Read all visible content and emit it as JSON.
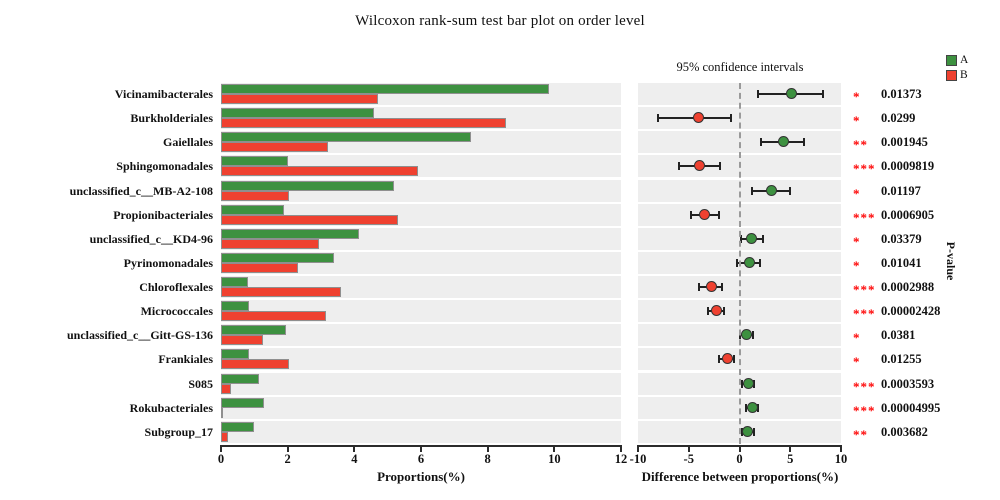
{
  "title": "Wilcoxon rank-sum test bar plot on order level",
  "legend": {
    "items": [
      {
        "label": "A",
        "color": "#3d9140"
      },
      {
        "label": "B",
        "color": "#ef4130"
      }
    ]
  },
  "right_panel_title": "95% confidence intervals",
  "pvalue_axis_label": "P-value",
  "left_axis": {
    "label": "Proportions(%)",
    "ticks": [
      0,
      2,
      4,
      6,
      8,
      10,
      12
    ],
    "min": 0,
    "max": 12
  },
  "right_axis": {
    "label": "Difference between proportions(%)",
    "ticks": [
      -10,
      -5,
      0,
      5,
      10
    ],
    "min": -10,
    "max": 10
  },
  "colors": {
    "group_a": "#3d9140",
    "group_b": "#ef4130",
    "band_background": "#eeeeee",
    "significance": "#fe0000"
  },
  "chart_data": {
    "type": "bar",
    "title": "Wilcoxon rank-sum test bar plot on order level",
    "groups": [
      "A",
      "B"
    ],
    "xlabel_left": "Proportions(%)",
    "xlabel_right": "Difference between proportions(%)",
    "xlim_left": [
      0,
      12
    ],
    "xlim_right": [
      -10,
      10
    ],
    "legend_position": "top-right",
    "rows": [
      {
        "taxon": "Vicinamibacterales",
        "A": 9.85,
        "B": 4.7,
        "diff": 5.1,
        "ci": [
          1.8,
          8.2
        ],
        "enriched": "A",
        "sig": "*",
        "pvalue": "0.01373"
      },
      {
        "taxon": "Burkholderiales",
        "A": 4.6,
        "B": 8.55,
        "diff": -4.0,
        "ci": [
          -8.0,
          -0.8
        ],
        "enriched": "B",
        "sig": "*",
        "pvalue": "0.0299"
      },
      {
        "taxon": "Gaiellales",
        "A": 7.5,
        "B": 3.2,
        "diff": 4.3,
        "ci": [
          2.1,
          6.4
        ],
        "enriched": "A",
        "sig": "**",
        "pvalue": "0.001945"
      },
      {
        "taxon": "Sphingomonadales",
        "A": 2.0,
        "B": 5.9,
        "diff": -3.9,
        "ci": [
          -6.0,
          -1.9
        ],
        "enriched": "B",
        "sig": "***",
        "pvalue": "0.0009819"
      },
      {
        "taxon": "unclassified_c__MB-A2-108",
        "A": 5.2,
        "B": 2.05,
        "diff": 3.15,
        "ci": [
          1.2,
          5.0
        ],
        "enriched": "A",
        "sig": "*",
        "pvalue": "0.01197"
      },
      {
        "taxon": "Propionibacteriales",
        "A": 1.9,
        "B": 5.3,
        "diff": -3.4,
        "ci": [
          -4.8,
          -2.0
        ],
        "enriched": "B",
        "sig": "***",
        "pvalue": "0.0006905"
      },
      {
        "taxon": "unclassified_c__KD4-96",
        "A": 4.15,
        "B": 2.95,
        "diff": 1.2,
        "ci": [
          0.1,
          2.3
        ],
        "enriched": "A",
        "sig": "*",
        "pvalue": "0.03379"
      },
      {
        "taxon": "Pyrinomonadales",
        "A": 3.4,
        "B": 2.3,
        "diff": 1.0,
        "ci": [
          -0.2,
          2.0
        ],
        "enriched": "A",
        "sig": "*",
        "pvalue": "0.01041"
      },
      {
        "taxon": "Chloroflexales",
        "A": 0.8,
        "B": 3.6,
        "diff": -2.8,
        "ci": [
          -4.0,
          -1.7
        ],
        "enriched": "B",
        "sig": "***",
        "pvalue": "0.0002988"
      },
      {
        "taxon": "Micrococcales",
        "A": 0.85,
        "B": 3.15,
        "diff": -2.3,
        "ci": [
          -3.1,
          -1.5
        ],
        "enriched": "B",
        "sig": "***",
        "pvalue": "0.00002428"
      },
      {
        "taxon": "unclassified_c__Gitt-GS-136",
        "A": 1.95,
        "B": 1.25,
        "diff": 0.7,
        "ci": [
          0.05,
          1.3
        ],
        "enriched": "A",
        "sig": "*",
        "pvalue": "0.0381"
      },
      {
        "taxon": "Frankiales",
        "A": 0.85,
        "B": 2.05,
        "diff": -1.2,
        "ci": [
          -2.0,
          -0.5
        ],
        "enriched": "B",
        "sig": "*",
        "pvalue": "0.01255"
      },
      {
        "taxon": "S085",
        "A": 1.15,
        "B": 0.3,
        "diff": 0.85,
        "ci": [
          0.25,
          1.4
        ],
        "enriched": "A",
        "sig": "***",
        "pvalue": "0.0003593"
      },
      {
        "taxon": "Rokubacteriales",
        "A": 1.3,
        "B": 0.05,
        "diff": 1.25,
        "ci": [
          0.65,
          1.85
        ],
        "enriched": "A",
        "sig": "***",
        "pvalue": "0.00004995"
      },
      {
        "taxon": "Subgroup_17",
        "A": 1.0,
        "B": 0.2,
        "diff": 0.8,
        "ci": [
          0.2,
          1.4
        ],
        "enriched": "A",
        "sig": "**",
        "pvalue": "0.003682"
      }
    ]
  }
}
